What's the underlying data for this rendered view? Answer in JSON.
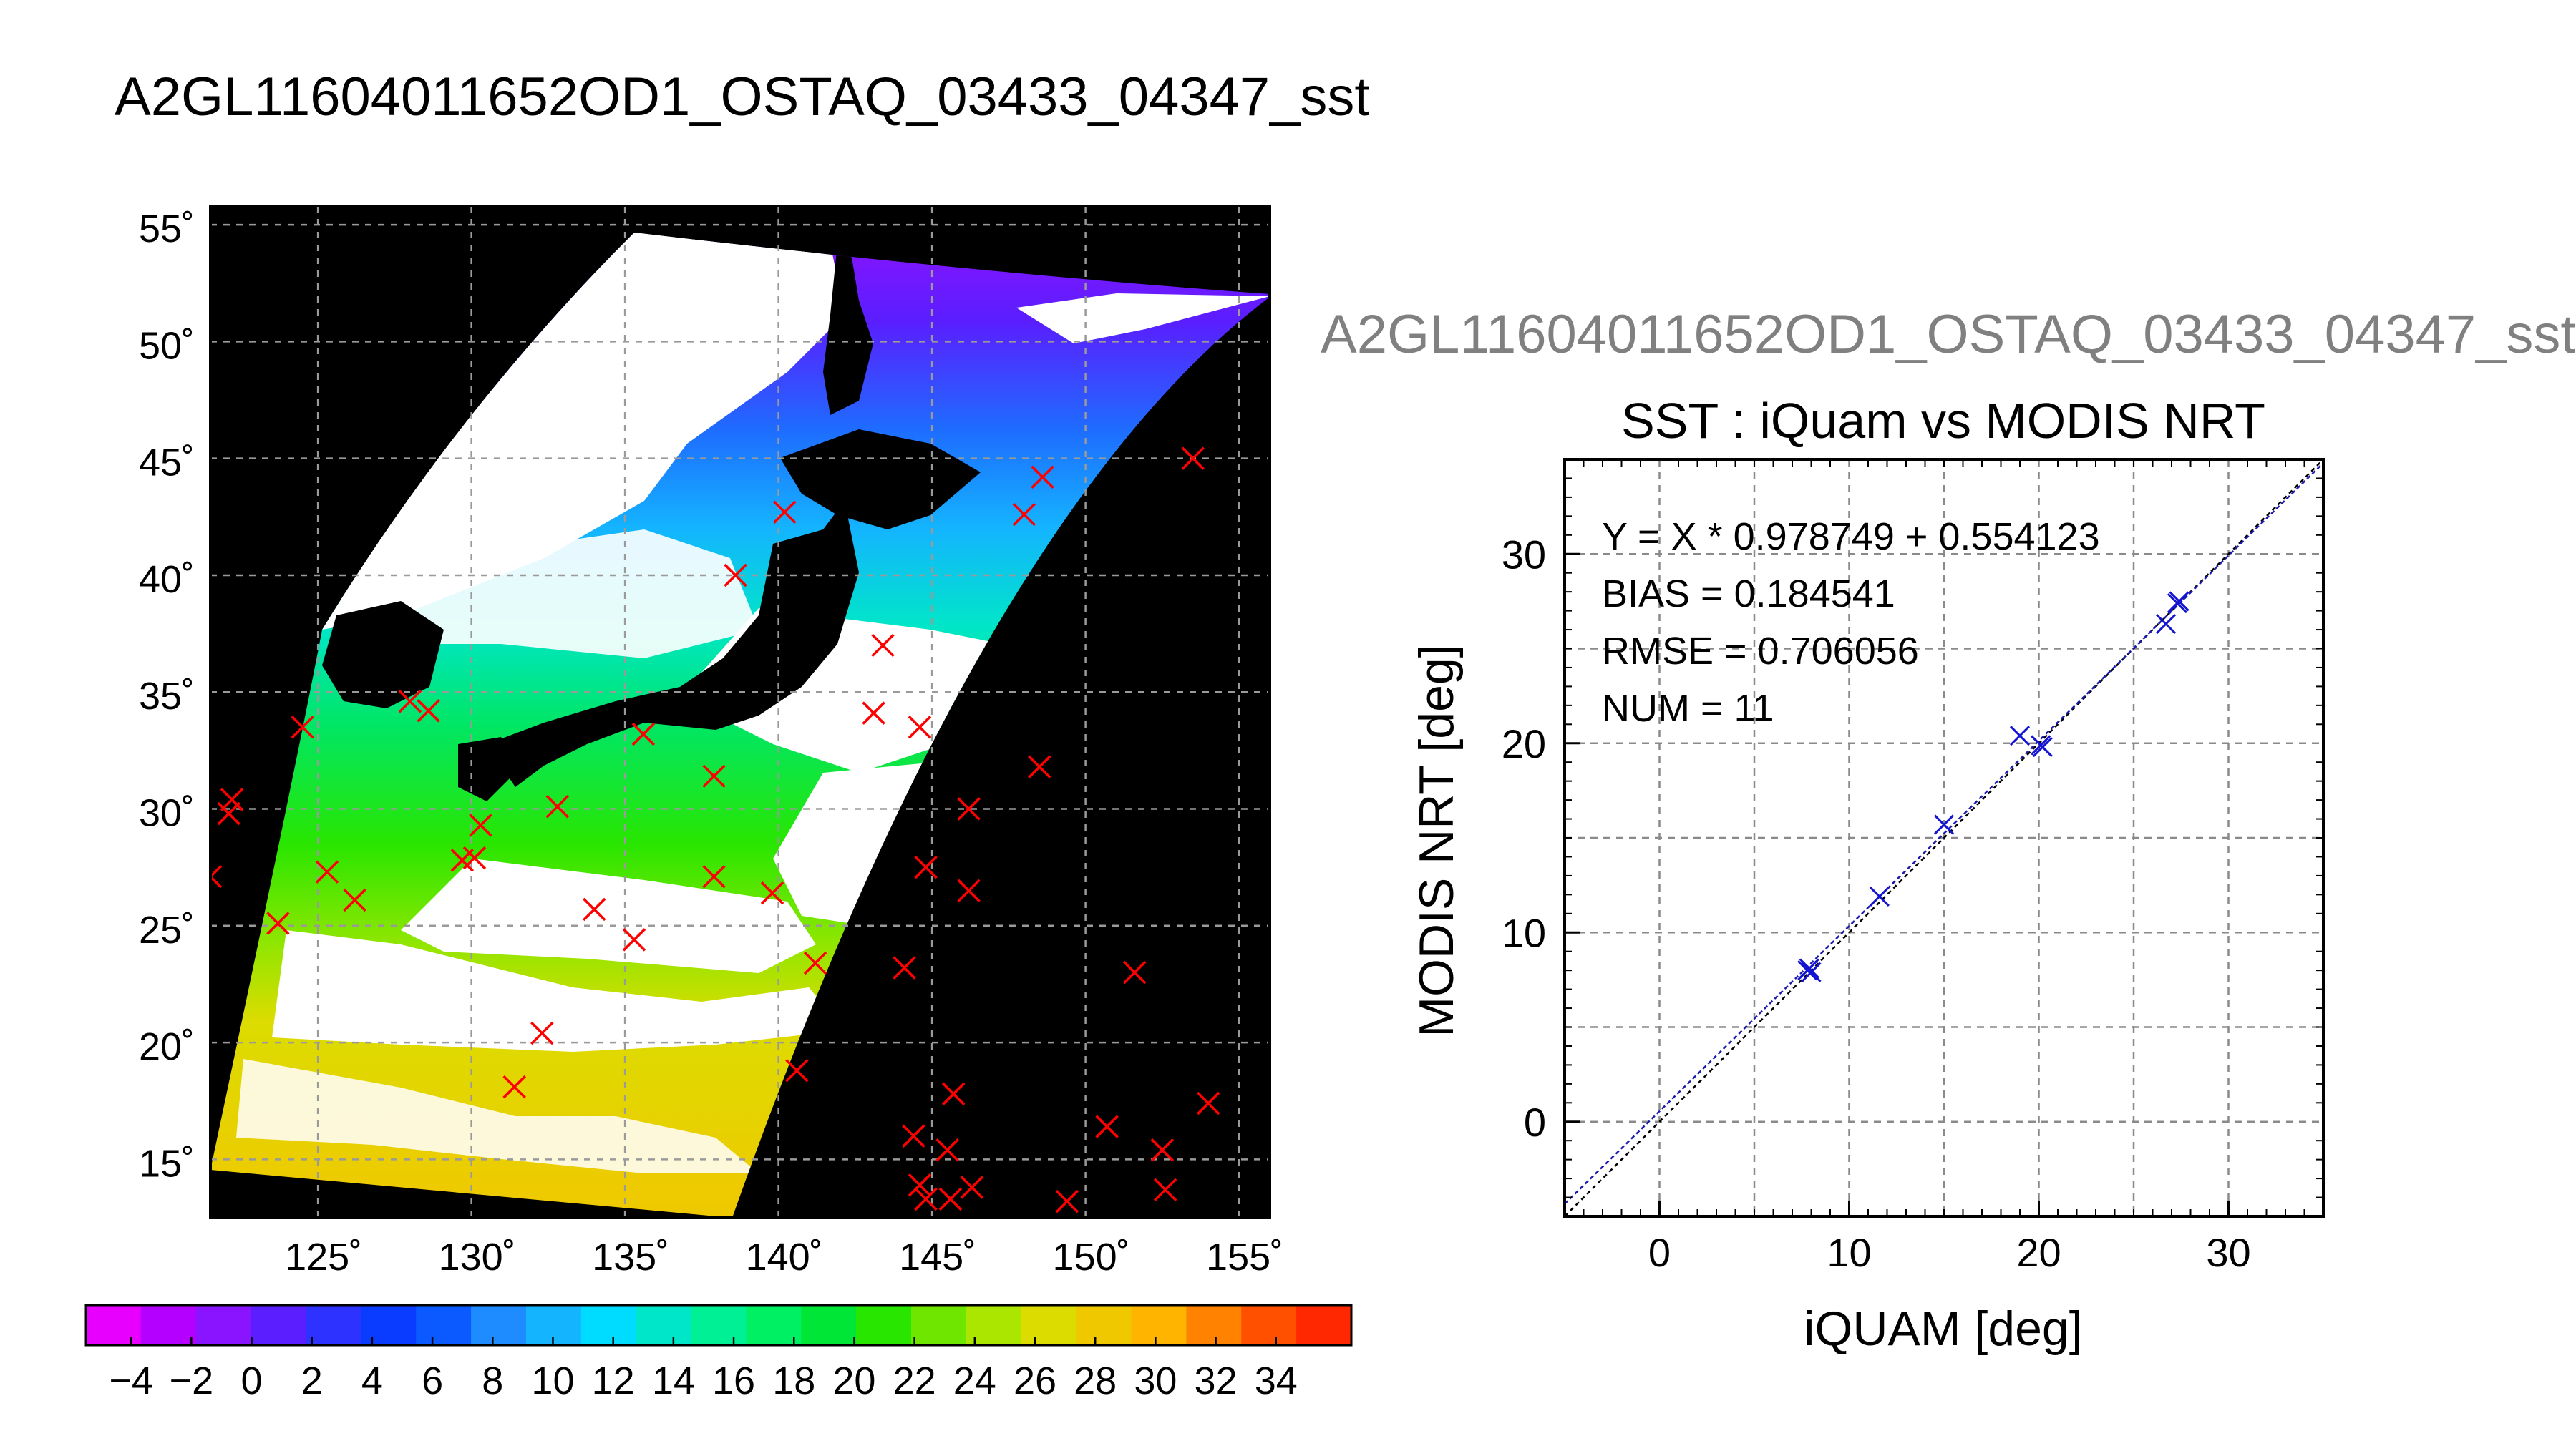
{
  "main_title": "A2GL11604011652OD1_OSTAQ_03433_04347_sst",
  "sub_title": "A2GL11604011652OD1_OSTAQ_03433_04347_sst",
  "map": {
    "lat_ticks": [
      "55˚",
      "50˚",
      "45˚",
      "40˚",
      "35˚",
      "30˚",
      "25˚",
      "20˚",
      "15˚"
    ],
    "lon_ticks": [
      "125˚",
      "130˚",
      "135˚",
      "140˚",
      "145˚",
      "150˚",
      "155˚"
    ],
    "lon_range": [
      121.5,
      156
    ],
    "lat_range": [
      12.5,
      55.8
    ],
    "grid": true,
    "colors": {
      "land": "#000000",
      "no_data": "#ffffff",
      "marker_out": "#ff0000",
      "marker_in": "#1a1aa0"
    },
    "buoy_markers": [
      [
        124.5,
        33.5
      ],
      [
        122.2,
        30.4
      ],
      [
        122.1,
        29.8
      ],
      [
        123.7,
        25.1
      ],
      [
        126.2,
        26.1
      ],
      [
        125.3,
        27.3
      ],
      [
        128.0,
        34.6
      ],
      [
        128.6,
        34.2
      ],
      [
        129.7,
        27.8
      ],
      [
        130.1,
        27.9
      ],
      [
        130.3,
        29.3
      ],
      [
        132.3,
        20.4
      ],
      [
        131.4,
        18.1
      ],
      [
        132.8,
        30.1
      ],
      [
        134.0,
        25.7
      ],
      [
        135.3,
        24.4
      ],
      [
        135.6,
        33.2
      ],
      [
        137.9,
        31.4
      ],
      [
        137.9,
        27.1
      ],
      [
        138.6,
        40.0
      ],
      [
        140.2,
        42.7
      ],
      [
        139.8,
        26.4
      ],
      [
        140.6,
        18.8
      ],
      [
        141.2,
        23.4
      ],
      [
        143.1,
        34.1
      ],
      [
        143.4,
        37.0
      ],
      [
        144.6,
        33.5
      ],
      [
        144.8,
        27.5
      ],
      [
        146.2,
        30.0
      ],
      [
        146.2,
        26.5
      ],
      [
        144.1,
        23.2
      ],
      [
        148.5,
        31.8
      ],
      [
        148.0,
        42.6
      ],
      [
        148.6,
        44.2
      ],
      [
        153.5,
        45.0
      ],
      [
        151.6,
        23.0
      ],
      [
        150.7,
        16.4
      ],
      [
        154.0,
        17.4
      ],
      [
        152.6,
        13.7
      ],
      [
        152.5,
        15.4
      ],
      [
        145.7,
        17.8
      ],
      [
        145.5,
        15.4
      ],
      [
        144.4,
        16.0
      ],
      [
        144.6,
        13.9
      ],
      [
        144.8,
        13.3
      ],
      [
        145.6,
        13.3
      ],
      [
        146.3,
        13.8
      ],
      [
        149.4,
        13.2
      ],
      [
        121.5,
        27.1
      ]
    ]
  },
  "colorbar": {
    "tick_labels": [
      "−4",
      "−2",
      "0",
      "2",
      "4",
      "6",
      "8",
      "10",
      "12",
      "14",
      "16",
      "18",
      "20",
      "22",
      "24",
      "26",
      "28",
      "30",
      "32",
      "34"
    ],
    "colors": [
      "#e800ff",
      "#b400ff",
      "#8a14ff",
      "#5a1eff",
      "#2d32ff",
      "#0a3cff",
      "#0a5aff",
      "#1e8cff",
      "#14b4ff",
      "#00dcff",
      "#00e6c8",
      "#00f096",
      "#00f064",
      "#00e637",
      "#28e600",
      "#6ee600",
      "#aae600",
      "#dcdc00",
      "#f0c800",
      "#ffb400",
      "#ff8200",
      "#ff5000",
      "#ff2800"
    ]
  },
  "chart_data": {
    "type": "scatter",
    "title": "SST : iQuam vs MODIS NRT",
    "xlabel": "iQUAM [deg]",
    "ylabel": "MODIS NRT [deg]",
    "xlim": [
      -5,
      35
    ],
    "ylim": [
      -5,
      35
    ],
    "x_ticks": [
      "0",
      "10",
      "20",
      "30"
    ],
    "y_ticks": [
      "0",
      "10",
      "20",
      "30"
    ],
    "grid": true,
    "stats": [
      "Y = X * 0.978749 + 0.554123",
      "BIAS = 0.184541",
      "RMSE = 0.706056",
      "NUM = 11"
    ],
    "regression": {
      "slope": 0.978749,
      "intercept": 0.554123
    },
    "points": [
      {
        "x": 7.8,
        "y": 8.0
      },
      {
        "x": 8.0,
        "y": 7.9
      },
      {
        "x": 11.6,
        "y": 11.9
      },
      {
        "x": 15.0,
        "y": 15.7
      },
      {
        "x": 19.0,
        "y": 20.4
      },
      {
        "x": 20.1,
        "y": 19.9
      },
      {
        "x": 20.2,
        "y": 19.8
      },
      {
        "x": 26.7,
        "y": 26.3
      },
      {
        "x": 27.4,
        "y": 27.5
      },
      {
        "x": 27.3,
        "y": 27.4
      },
      {
        "x": 7.9,
        "y": 8.1
      }
    ]
  }
}
